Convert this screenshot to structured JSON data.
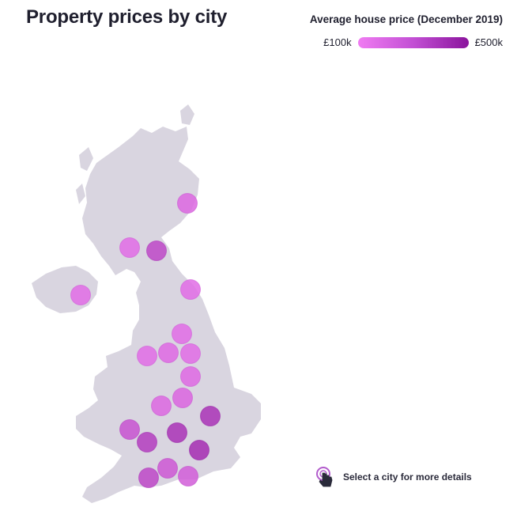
{
  "title": "Property prices by city",
  "legend": {
    "title": "Average house price (December 2019)",
    "min_label": "£100k",
    "max_label": "£500k",
    "min_color": "#f07cf2",
    "max_color": "#8a139c"
  },
  "hint": {
    "text": "Select a city for more details",
    "icon": "tap-hand-icon"
  },
  "map": {
    "land_color": "#d9d5e0",
    "regions": [
      "great-britain",
      "ireland"
    ]
  },
  "cities": [
    {
      "id": "aberdeen",
      "level": 0.2
    },
    {
      "id": "glasgow",
      "level": 0.15
    },
    {
      "id": "edinburgh",
      "level": 0.5
    },
    {
      "id": "belfast",
      "level": 0.15
    },
    {
      "id": "newcastle",
      "level": 0.15
    },
    {
      "id": "leeds",
      "level": 0.15
    },
    {
      "id": "liverpool",
      "level": 0.15
    },
    {
      "id": "manchester",
      "level": 0.18
    },
    {
      "id": "sheffield",
      "level": 0.15
    },
    {
      "id": "nottingham",
      "level": 0.18
    },
    {
      "id": "leicester",
      "level": 0.22
    },
    {
      "id": "birmingham",
      "level": 0.2
    },
    {
      "id": "cambridge",
      "level": 0.7
    },
    {
      "id": "cardiff",
      "level": 0.4
    },
    {
      "id": "bristol",
      "level": 0.6
    },
    {
      "id": "oxford",
      "level": 0.7
    },
    {
      "id": "london",
      "level": 0.75
    },
    {
      "id": "exeter",
      "level": 0.5
    },
    {
      "id": "southampton",
      "level": 0.35
    },
    {
      "id": "brighton",
      "level": 0.3
    }
  ]
}
